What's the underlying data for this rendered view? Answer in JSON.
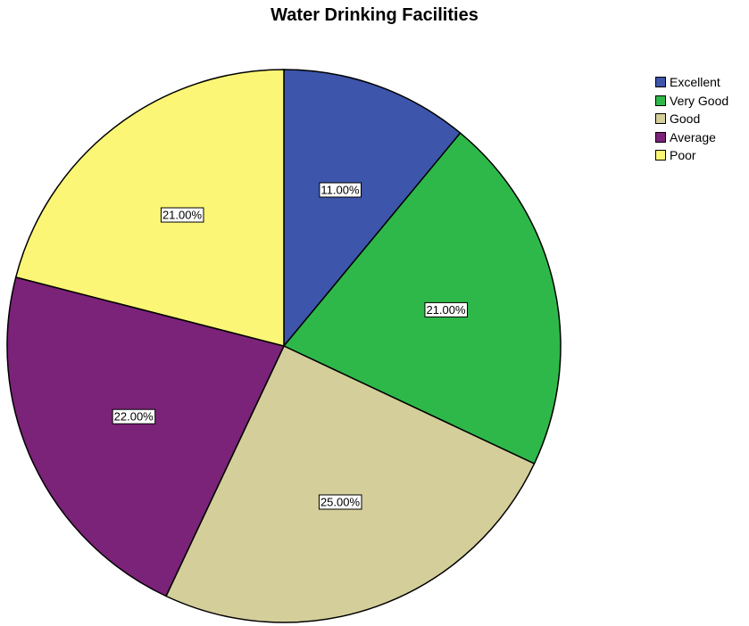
{
  "chart_data": {
    "type": "pie",
    "title": "Water Drinking Facilities",
    "categories": [
      "Excellent",
      "Very Good",
      "Good",
      "Average",
      "Poor"
    ],
    "values": [
      11,
      21,
      25,
      22,
      21
    ],
    "labels": [
      "11.00%",
      "21.00%",
      "25.00%",
      "22.00%",
      "21.00%"
    ],
    "colors": [
      "#3d55aa",
      "#2fb84a",
      "#d4ce9a",
      "#7b2279",
      "#fbf676"
    ],
    "legend_position": "top-right",
    "start": "12 o'clock",
    "direction": "clockwise"
  }
}
